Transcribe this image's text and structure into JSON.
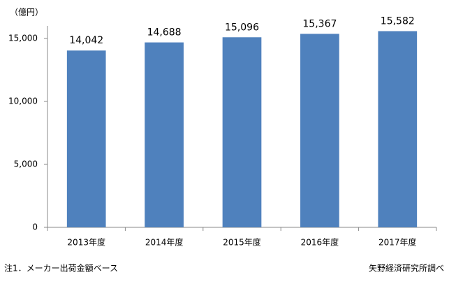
{
  "chart_data": {
    "type": "bar",
    "unit_label": "（億円）",
    "categories": [
      "2013年度",
      "2014年度",
      "2015年度",
      "2016年度",
      "2017年度"
    ],
    "values": [
      14042,
      14688,
      15096,
      15367,
      15582
    ],
    "value_labels": [
      "14,042",
      "14,688",
      "15,096",
      "15,367",
      "15,582"
    ],
    "color": "#4f81bd",
    "ylim": [
      0,
      16000
    ],
    "yticks": [
      0,
      {
        "value": 5000,
        "label": "5,000"
      },
      {
        "value": 10000,
        "label": "10,000"
      },
      {
        "value": 15000,
        "label": "15,000"
      }
    ],
    "grid": false,
    "note": "注1．メーカー出荷金額ベース",
    "source": "矢野経済研究所調べ"
  }
}
